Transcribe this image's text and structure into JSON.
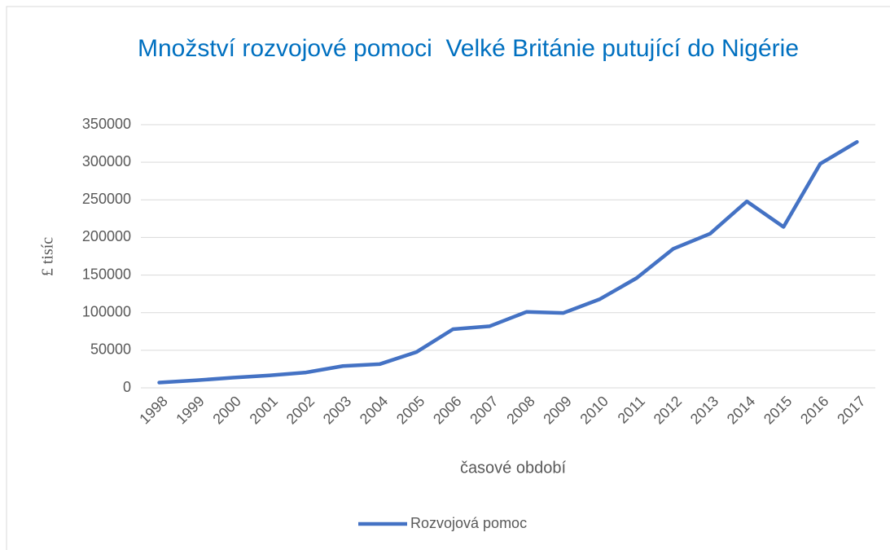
{
  "chart_data": {
    "type": "line",
    "title": "Množství rozvojové pomoci  Velké Británie putující do Nigérie",
    "x_label": "časové období",
    "y_label": "£ tisíc",
    "categories": [
      "1998",
      "1999",
      "2000",
      "2001",
      "2002",
      "2003",
      "2004",
      "2005",
      "2006",
      "2007",
      "2008",
      "2009",
      "2010",
      "2011",
      "2012",
      "2013",
      "2014",
      "2015",
      "2016",
      "2017"
    ],
    "series": [
      {
        "name": "Rozvojová pomoc",
        "color": "#4472c4",
        "values": [
          7000,
          10000,
          13500,
          16500,
          20500,
          29000,
          31500,
          47500,
          78000,
          82000,
          101000,
          99500,
          118000,
          146000,
          185000,
          205000,
          248000,
          214000,
          298000,
          327000
        ]
      }
    ],
    "ylim": [
      0,
      350000
    ],
    "yticks": [
      0,
      50000,
      100000,
      150000,
      200000,
      250000,
      300000,
      350000
    ],
    "grid": true,
    "legend": "bottom"
  }
}
